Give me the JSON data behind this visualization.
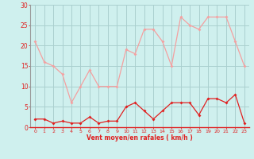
{
  "x": [
    0,
    1,
    2,
    3,
    4,
    5,
    6,
    7,
    8,
    9,
    10,
    11,
    12,
    13,
    14,
    15,
    16,
    17,
    18,
    19,
    20,
    21,
    22,
    23
  ],
  "rafales": [
    21,
    16,
    15,
    13,
    6,
    10,
    14,
    10,
    10,
    10,
    19,
    18,
    24,
    24,
    21,
    15,
    27,
    25,
    24,
    27,
    27,
    27,
    21,
    15
  ],
  "moyen": [
    2,
    2,
    1,
    1.5,
    1,
    1,
    2.5,
    1,
    1.5,
    1.5,
    5,
    6,
    4,
    2,
    4,
    6,
    6,
    6,
    3,
    7,
    7,
    6,
    8,
    1
  ],
  "color_rafales": "#f4a0a0",
  "color_moyen": "#e02020",
  "bg_color": "#cff0ee",
  "grid_color": "#aacfcf",
  "xlabel": "Vent moyen/en rafales ( km/h )",
  "xlabel_color": "#e02020",
  "tick_color": "#e02020",
  "ylim": [
    0,
    30
  ],
  "yticks": [
    0,
    5,
    10,
    15,
    20,
    25,
    30
  ],
  "xticks": [
    0,
    1,
    2,
    3,
    4,
    5,
    6,
    7,
    8,
    9,
    10,
    11,
    12,
    13,
    14,
    15,
    16,
    17,
    18,
    19,
    20,
    21,
    22,
    23
  ]
}
